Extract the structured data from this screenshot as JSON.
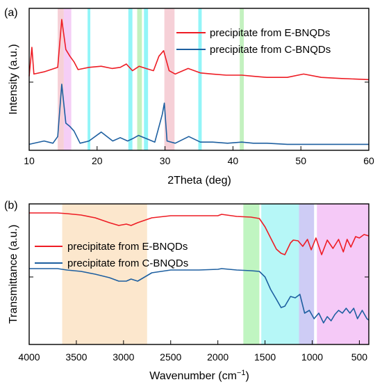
{
  "colors": {
    "series_e": "#ee1c24",
    "series_c": "#1d5fa0",
    "band_cyan": "#7ff3f7",
    "band_green": "#b8efb4",
    "band_pink": "#f5c8d0",
    "band_magenta": "#f3c6f5",
    "band_peach": "#fbe3c4",
    "band_cyan_ftir": "#a9f6f6",
    "band_lavender": "#c6c3f3",
    "band_violet": "#f3bff6",
    "band_green_ftir": "#b5f3b6"
  },
  "chart_data": [
    {
      "type": "line",
      "panel_label": "(a)",
      "xlabel": "2Theta (deg)",
      "ylabel": "Intensity (a.u.)",
      "xlim": [
        10,
        60
      ],
      "xticks": [
        "10",
        "20",
        "30",
        "40",
        "50",
        "60"
      ],
      "legend_position": "top-right",
      "series": [
        {
          "name": "precipitate from E-BNQDs",
          "color": "#ee1c24",
          "x": [
            10,
            10.4,
            10.7,
            12.2,
            14.2,
            14.8,
            15.4,
            16,
            16.6,
            17.2,
            18.8,
            20.6,
            22.2,
            23.4,
            24.3,
            25.2,
            26.2,
            27.2,
            28.3,
            29.1,
            29.8,
            30.6,
            31.5,
            33.4,
            35.2,
            37,
            39,
            41.3,
            43,
            45,
            48,
            50.4,
            53,
            56,
            60
          ],
          "y": [
            4,
            30,
            6,
            8,
            12,
            55,
            28,
            22,
            17,
            10,
            12,
            13,
            11,
            12,
            15,
            9,
            13,
            11,
            9,
            22,
            27,
            9,
            6,
            11,
            7,
            6,
            5,
            5,
            4,
            3,
            3,
            6,
            3,
            2,
            1
          ]
        },
        {
          "name": "precipitate from C-BNQDs",
          "color": "#1d5fa0",
          "x": [
            10,
            12.2,
            13.5,
            14.2,
            14.8,
            15.4,
            16,
            16.6,
            17.5,
            18.8,
            20.6,
            22.3,
            23.4,
            24.5,
            25.2,
            26.1,
            27.3,
            28.5,
            29.6,
            29.9,
            30.3,
            31.5,
            33.5,
            35.2,
            37,
            39.2,
            41.3,
            43,
            45,
            48,
            52,
            56,
            60
          ],
          "y": [
            1,
            4,
            2,
            8,
            55,
            20,
            17,
            13,
            2,
            4,
            12,
            4,
            7,
            4,
            6,
            9,
            6,
            3,
            28,
            38,
            4,
            2,
            8,
            3,
            3,
            2,
            3,
            2,
            2,
            1,
            1,
            1,
            1
          ]
        }
      ],
      "bands": [
        {
          "from": 14.2,
          "to": 15.1,
          "color": "#f5c8d0"
        },
        {
          "from": 15.1,
          "to": 16.2,
          "color": "#f3c6f5"
        },
        {
          "from": 18.6,
          "to": 19.0,
          "color": "#7ff3f7"
        },
        {
          "from": 24.6,
          "to": 25.2,
          "color": "#7ff3f7"
        },
        {
          "from": 25.9,
          "to": 26.6,
          "color": "#b8efb4"
        },
        {
          "from": 26.9,
          "to": 27.5,
          "color": "#7ff3f7"
        },
        {
          "from": 29.9,
          "to": 31.4,
          "color": "#f5c8d0"
        },
        {
          "from": 34.9,
          "to": 35.4,
          "color": "#7ff3f7"
        },
        {
          "from": 41.0,
          "to": 41.6,
          "color": "#b8efb4"
        }
      ]
    },
    {
      "type": "line",
      "panel_label": "(b)",
      "xlabel": "Wavenumber (cm",
      "xlabel_sup": "−1",
      "xlabel_end": ")",
      "ylabel": "Transmittance (a.u.)",
      "xlim": [
        4000,
        400
      ],
      "xticks": [
        "4000",
        "3500",
        "3000",
        "2500",
        "2000",
        "1500",
        "1000",
        "500"
      ],
      "legend_position": "top-left",
      "series": [
        {
          "name": "precipitate from E-BNQDs",
          "color": "#ee1c24",
          "x": [
            4000,
            3700,
            3600,
            3450,
            3300,
            3150,
            3050,
            2970,
            2920,
            2850,
            2700,
            2500,
            2200,
            2000,
            1960,
            1800,
            1650,
            1560,
            1500,
            1440,
            1380,
            1330,
            1290,
            1230,
            1200,
            1150,
            1100,
            1050,
            1010,
            960,
            900,
            840,
            780,
            720,
            670,
            630,
            590,
            540,
            500,
            450,
            400
          ],
          "y": [
            96,
            96,
            95,
            93,
            89,
            82,
            78,
            80,
            78,
            82,
            89,
            92,
            92,
            92,
            94,
            91,
            90,
            88,
            76,
            60,
            44,
            38,
            36,
            53,
            57,
            56,
            48,
            58,
            43,
            60,
            36,
            57,
            45,
            58,
            40,
            58,
            47,
            62,
            60,
            65,
            63
          ]
        },
        {
          "name": "precipitate from C-BNQDs",
          "color": "#1d5fa0",
          "x": [
            4000,
            3700,
            3600,
            3450,
            3300,
            3150,
            3050,
            2970,
            2920,
            2850,
            2700,
            2500,
            2200,
            2000,
            1960,
            1800,
            1650,
            1560,
            1500,
            1440,
            1380,
            1330,
            1290,
            1230,
            1180,
            1130,
            1080,
            1030,
            980,
            930,
            880,
            840,
            800,
            760,
            720,
            680,
            640,
            600,
            560,
            520,
            470,
            420,
            400
          ],
          "y": [
            12,
            12,
            10,
            8,
            4,
            -1,
            -6,
            -6,
            -3,
            -6,
            6,
            10,
            10,
            11,
            12,
            10,
            9,
            8,
            0,
            -18,
            -32,
            -44,
            -42,
            -28,
            -30,
            -25,
            -52,
            -48,
            -60,
            -52,
            -66,
            -57,
            -63,
            -54,
            -48,
            -52,
            -45,
            -52,
            -45,
            -60,
            -48,
            -60,
            -62
          ]
        }
      ],
      "bands": [
        {
          "from": 3650,
          "to": 2750,
          "color": "#fbe3c4"
        },
        {
          "from": 1730,
          "to": 1560,
          "color": "#b5f3b6"
        },
        {
          "from": 1540,
          "to": 1140,
          "color": "#a9f6f6"
        },
        {
          "from": 1140,
          "to": 980,
          "color": "#c6c3f3"
        },
        {
          "from": 950,
          "to": 400,
          "color": "#f3bff6"
        }
      ]
    }
  ]
}
